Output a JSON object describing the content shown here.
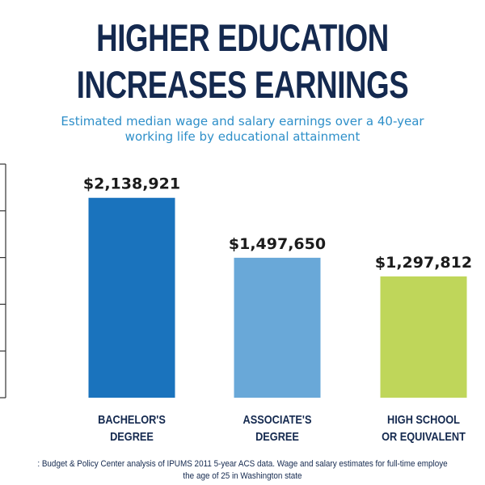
{
  "header": {
    "title_line1": "HIGHER EDUCATION",
    "title_line2": "INCREASES EARNINGS",
    "subtitle_line1": "Estimated median wage and salary earnings over a 40-year",
    "subtitle_line2": "working life by educational attainment"
  },
  "chart_data": {
    "type": "bar",
    "categories": [
      "BACHELOR'S DEGREE",
      "ASSOCIATE'S DEGREE",
      "HIGH SCHOOL OR EQUIVALENT"
    ],
    "category_label_lines": [
      [
        "BACHELOR'S",
        "DEGREE"
      ],
      [
        "ASSOCIATE'S",
        "DEGREE"
      ],
      [
        "HIGH SCHOOL",
        "OR EQUIVALENT"
      ]
    ],
    "values": [
      2138921,
      1497650,
      1297812
    ],
    "value_labels": [
      "$2,138,921",
      "$1,497,650",
      "$1,297,812"
    ],
    "colors": [
      "#1a73bd",
      "#69a8d8",
      "#bfd65a"
    ],
    "ylim": [
      0,
      2500000
    ],
    "y_ticks_count": 6,
    "tick_labels_shown": false,
    "grid": false,
    "legend": "none",
    "title": "HIGHER EDUCATION INCREASES EARNINGS",
    "xlabel": "",
    "ylabel": ""
  },
  "footer": {
    "source_line1": ": Budget & Policy Center analysis of IPUMS 2011 5-year ACS data. Wage and salary estimates for full-time employe",
    "source_line2": "the age of 25 in Washington state"
  }
}
